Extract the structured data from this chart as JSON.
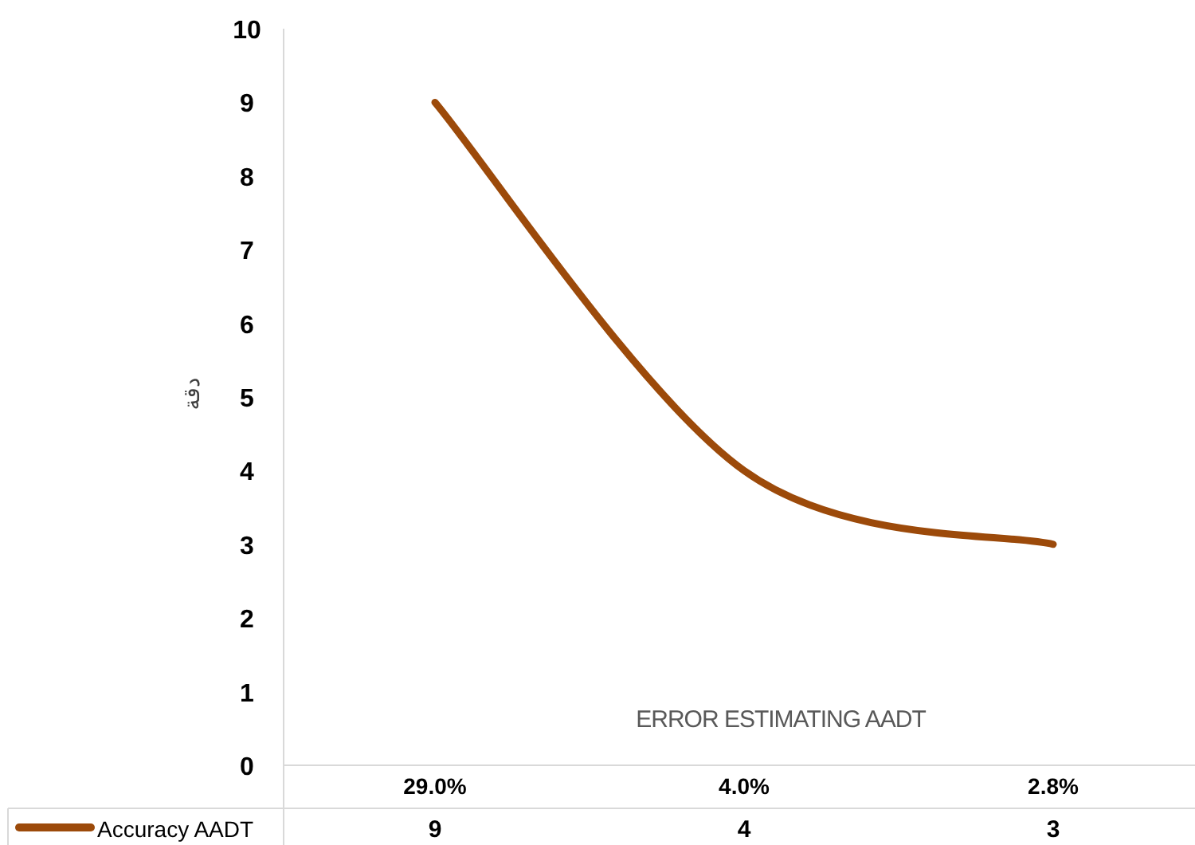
{
  "chart_data": {
    "type": "line",
    "categories": [
      "29.0%",
      "4.0%",
      "2.8%"
    ],
    "series": [
      {
        "name": "Accuracy AADT",
        "color": "#9c4a0a",
        "values": [
          9,
          4,
          3
        ]
      }
    ],
    "ylim": [
      0,
      10
    ],
    "yticks": [
      0,
      1,
      2,
      3,
      4,
      5,
      6,
      7,
      8,
      9,
      10
    ],
    "xlabel": "ERROR ESTIMATING AADT",
    "ylabel": "دقة",
    "data_labels": true,
    "legend": "bottom",
    "grid": false,
    "marker": "none",
    "line_style": "solid"
  }
}
